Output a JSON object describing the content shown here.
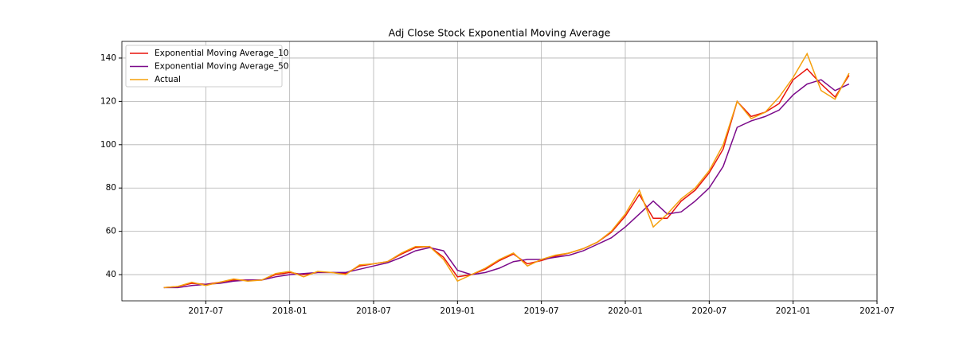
{
  "chart_data": {
    "type": "line",
    "title": "Adj Close Stock Exponential Moving Average",
    "x": [
      "2017-04",
      "2017-05",
      "2017-06",
      "2017-07",
      "2017-08",
      "2017-09",
      "2017-10",
      "2017-11",
      "2017-12",
      "2018-01",
      "2018-02",
      "2018-03",
      "2018-04",
      "2018-05",
      "2018-06",
      "2018-07",
      "2018-08",
      "2018-09",
      "2018-10",
      "2018-11",
      "2018-12",
      "2019-01",
      "2019-02",
      "2019-03",
      "2019-04",
      "2019-05",
      "2019-06",
      "2019-07",
      "2019-08",
      "2019-09",
      "2019-10",
      "2019-11",
      "2019-12",
      "2020-01",
      "2020-02",
      "2020-03",
      "2020-04",
      "2020-05",
      "2020-06",
      "2020-07",
      "2020-08",
      "2020-09",
      "2020-10",
      "2020-11",
      "2020-12",
      "2021-01",
      "2021-02",
      "2021-03",
      "2021-04",
      "2021-05"
    ],
    "series": [
      {
        "name": "Exponential Moving Average_10",
        "color": "#e8140c",
        "values": [
          34,
          34.5,
          36,
          35.5,
          36.5,
          37.5,
          37.5,
          37.5,
          40,
          41,
          40,
          41,
          41,
          40.5,
          44,
          45,
          46,
          49.5,
          52.5,
          53,
          48,
          39,
          40,
          42.5,
          46.5,
          49.5,
          45,
          46.5,
          48.5,
          50,
          52,
          55,
          59.5,
          67,
          77,
          66,
          66,
          74,
          79,
          87,
          98,
          120,
          113,
          115,
          119,
          130,
          135,
          128,
          122,
          132
        ]
      },
      {
        "name": "Exponential Moving Average_50",
        "color": "#7b0a8a",
        "values": [
          34,
          34,
          35,
          35.5,
          36,
          37,
          37.5,
          37.5,
          39,
          40,
          40.5,
          41,
          41,
          41,
          42.5,
          44,
          45.5,
          48,
          51,
          52.5,
          51,
          42,
          40,
          41,
          43,
          46,
          47,
          47,
          48,
          49,
          51,
          54,
          57,
          62,
          68,
          74,
          68,
          69,
          74,
          80,
          90,
          108,
          111,
          113,
          116,
          123,
          128,
          130,
          125,
          128
        ]
      },
      {
        "name": "Actual",
        "color": "#f5a00c",
        "values": [
          34,
          34.5,
          36.5,
          35,
          36.5,
          38,
          37,
          37.5,
          40.5,
          41.5,
          39,
          41.5,
          41,
          40,
          44.5,
          45,
          46,
          50,
          53,
          53,
          47,
          37,
          40,
          43,
          47,
          50,
          44,
          47,
          49,
          50,
          52,
          55,
          60,
          68,
          79,
          62,
          68,
          75,
          80,
          88,
          100,
          120,
          112,
          115,
          122,
          131,
          142,
          125,
          121,
          133
        ]
      }
    ],
    "xlim": [
      "2017-01",
      "2021-07"
    ],
    "xticks": [
      "2017-07",
      "2018-01",
      "2018-07",
      "2019-01",
      "2019-07",
      "2020-01",
      "2020-07",
      "2021-01",
      "2021-07"
    ],
    "ylim": [
      27.9,
      147.7
    ],
    "yticks": [
      40,
      60,
      80,
      100,
      120,
      140
    ],
    "grid": true,
    "legend": "upper left"
  }
}
